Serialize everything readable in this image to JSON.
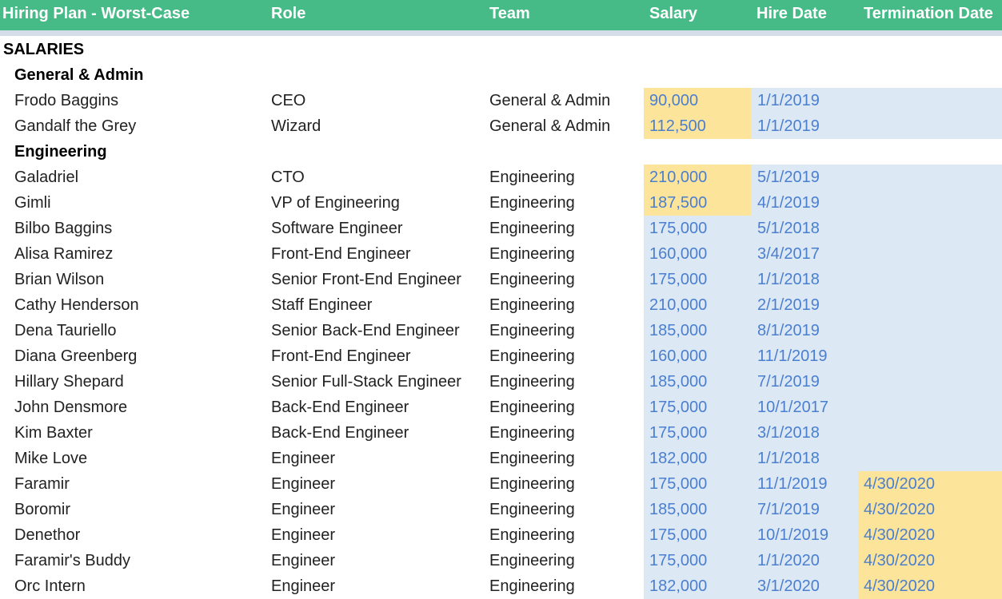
{
  "header": {
    "title": "Hiring Plan - Worst-Case",
    "col_role": "Role",
    "col_team": "Team",
    "col_salary": "Salary",
    "col_hire_date": "Hire Date",
    "col_termination_date": "Termination Date"
  },
  "colors": {
    "header_bg": "#46bb87",
    "input_blue": "#dde8f5",
    "highlight_yellow": "#fde49b",
    "value_text": "#4a7fcf"
  },
  "sheet": {
    "section": "SALARIES",
    "groups": [
      {
        "title": "General & Admin",
        "rows": [
          {
            "name": "Frodo Baggins",
            "role": "CEO",
            "team": "General & Admin",
            "salary": "90,000",
            "hire": "1/1/2019",
            "term": "",
            "salary_highlight": true,
            "term_highlight": false
          },
          {
            "name": "Gandalf the Grey",
            "role": "Wizard",
            "team": "General & Admin",
            "salary": "112,500",
            "hire": "1/1/2019",
            "term": "",
            "salary_highlight": true,
            "term_highlight": false
          }
        ]
      },
      {
        "title": "Engineering",
        "rows": [
          {
            "name": "Galadriel",
            "role": "CTO",
            "team": "Engineering",
            "salary": "210,000",
            "hire": "5/1/2019",
            "term": "",
            "salary_highlight": true,
            "term_highlight": false
          },
          {
            "name": "Gimli",
            "role": "VP of Engineering",
            "team": "Engineering",
            "salary": "187,500",
            "hire": "4/1/2019",
            "term": "",
            "salary_highlight": true,
            "term_highlight": false
          },
          {
            "name": "Bilbo Baggins",
            "role": "Software Engineer",
            "team": "Engineering",
            "salary": "175,000",
            "hire": "5/1/2018",
            "term": "",
            "salary_highlight": false,
            "term_highlight": false
          },
          {
            "name": "Alisa Ramirez",
            "role": "Front-End Engineer",
            "team": "Engineering",
            "salary": "160,000",
            "hire": "3/4/2017",
            "term": "",
            "salary_highlight": false,
            "term_highlight": false
          },
          {
            "name": "Brian Wilson",
            "role": "Senior Front-End Engineer",
            "team": "Engineering",
            "salary": "175,000",
            "hire": "1/1/2018",
            "term": "",
            "salary_highlight": false,
            "term_highlight": false
          },
          {
            "name": "Cathy Henderson",
            "role": "Staff Engineer",
            "team": "Engineering",
            "salary": "210,000",
            "hire": "2/1/2019",
            "term": "",
            "salary_highlight": false,
            "term_highlight": false
          },
          {
            "name": "Dena Tauriello",
            "role": "Senior Back-End Engineer",
            "team": "Engineering",
            "salary": "185,000",
            "hire": "8/1/2019",
            "term": "",
            "salary_highlight": false,
            "term_highlight": false
          },
          {
            "name": "Diana Greenberg",
            "role": "Front-End Engineer",
            "team": "Engineering",
            "salary": "160,000",
            "hire": "11/1/2019",
            "term": "",
            "salary_highlight": false,
            "term_highlight": false
          },
          {
            "name": "Hillary Shepard",
            "role": "Senior Full-Stack Engineer",
            "team": "Engineering",
            "salary": "185,000",
            "hire": "7/1/2019",
            "term": "",
            "salary_highlight": false,
            "term_highlight": false
          },
          {
            "name": "John Densmore",
            "role": "Back-End Engineer",
            "team": "Engineering",
            "salary": "175,000",
            "hire": "10/1/2017",
            "term": "",
            "salary_highlight": false,
            "term_highlight": false
          },
          {
            "name": "Kim Baxter",
            "role": "Back-End Engineer",
            "team": "Engineering",
            "salary": "175,000",
            "hire": "3/1/2018",
            "term": "",
            "salary_highlight": false,
            "term_highlight": false
          },
          {
            "name": "Mike Love",
            "role": "Engineer",
            "team": "Engineering",
            "salary": "182,000",
            "hire": "1/1/2018",
            "term": "",
            "salary_highlight": false,
            "term_highlight": false
          },
          {
            "name": "Faramir",
            "role": "Engineer",
            "team": "Engineering",
            "salary": "175,000",
            "hire": "11/1/2019",
            "term": "4/30/2020",
            "salary_highlight": false,
            "term_highlight": true
          },
          {
            "name": "Boromir",
            "role": "Engineer",
            "team": "Engineering",
            "salary": "185,000",
            "hire": "7/1/2019",
            "term": "4/30/2020",
            "salary_highlight": false,
            "term_highlight": true
          },
          {
            "name": "Denethor",
            "role": "Engineer",
            "team": "Engineering",
            "salary": "175,000",
            "hire": "10/1/2019",
            "term": "4/30/2020",
            "salary_highlight": false,
            "term_highlight": true
          },
          {
            "name": "Faramir's Buddy",
            "role": "Engineer",
            "team": "Engineering",
            "salary": "175,000",
            "hire": "1/1/2020",
            "term": "4/30/2020",
            "salary_highlight": false,
            "term_highlight": true
          },
          {
            "name": "Orc Intern",
            "role": "Engineer",
            "team": "Engineering",
            "salary": "182,000",
            "hire": "3/1/2020",
            "term": "4/30/2020",
            "salary_highlight": false,
            "term_highlight": true
          }
        ]
      }
    ]
  }
}
